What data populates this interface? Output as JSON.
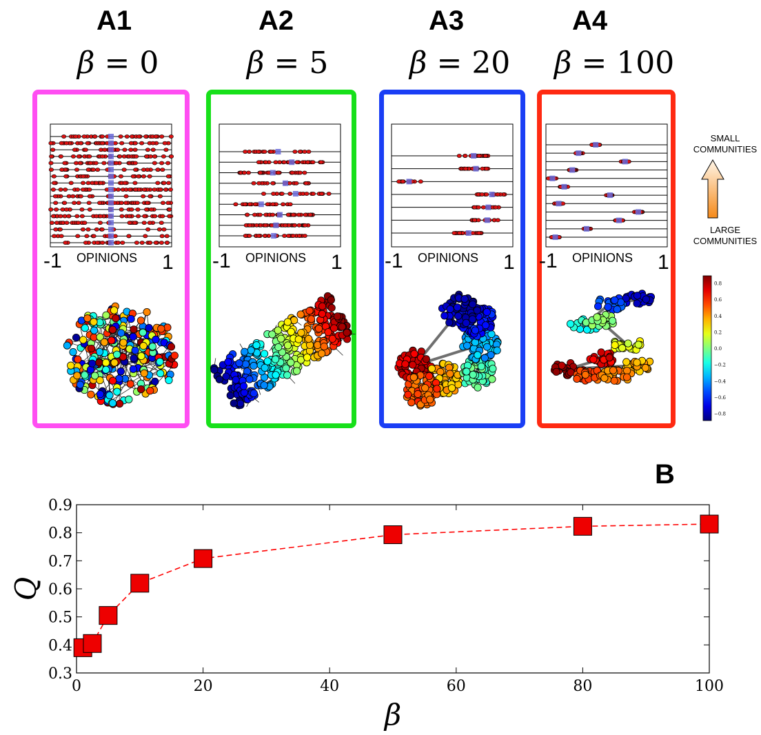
{
  "panels": [
    {
      "label": "A1",
      "beta_value": "0",
      "color": "#ff4ef2"
    },
    {
      "label": "A2",
      "beta_value": "5",
      "color": "#17e01a"
    },
    {
      "label": "A3",
      "beta_value": "20",
      "color": "#1a3ef5"
    },
    {
      "label": "A4",
      "beta_value": "100",
      "color": "#ff2a12"
    }
  ],
  "beta_symbol": "β",
  "equals": "=",
  "opinions_label": "OPINIONS",
  "opinion_min": "-1",
  "opinion_max": "1",
  "side_top": "SMALL\nCOMMUNITIES",
  "side_bottom": "LARGE\nCOMMUNITIES",
  "colorbar": {
    "ticks": [
      "0.8",
      "0.6",
      "0.4",
      "0.2",
      "0.0",
      "−0.2",
      "−0.4",
      "−0.6",
      "−0.8"
    ],
    "colormap": "jet"
  },
  "panel_b_label": "B",
  "chart_data": {
    "type": "line",
    "xlabel": "β",
    "ylabel": "Q",
    "xlim": [
      0,
      100
    ],
    "ylim": [
      0.3,
      0.9
    ],
    "xticks": [
      "0",
      "20",
      "40",
      "60",
      "80",
      "100"
    ],
    "yticks": [
      "0.3",
      "0.4",
      "0.5",
      "0.6",
      "0.7",
      "0.8",
      "0.9"
    ],
    "series": [
      {
        "x": [
          1,
          2.5,
          5,
          10,
          20,
          50,
          80,
          100
        ],
        "y": [
          0.39,
          0.405,
          0.505,
          0.62,
          0.708,
          0.793,
          0.823,
          0.831
        ],
        "color": "#ff0000",
        "marker": "square",
        "linestyle": "dashed"
      }
    ],
    "grid": false
  }
}
